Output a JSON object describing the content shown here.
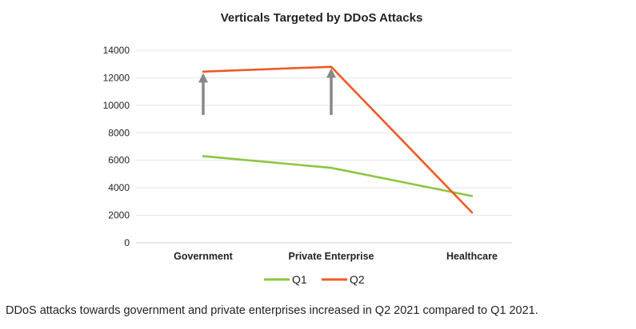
{
  "chart_data": {
    "type": "line",
    "title": "Verticals Targeted by DDoS Attacks",
    "xlabel": "",
    "ylabel": "",
    "categories": [
      "Government",
      "Private Enterprise",
      "Healthcare"
    ],
    "series": [
      {
        "name": "Q1",
        "values": [
          6300,
          5450,
          3400
        ],
        "color": "#8dc63f"
      },
      {
        "name": "Q2",
        "values": [
          12450,
          12800,
          2200
        ],
        "color": "#ef5a24"
      }
    ],
    "ylim": [
      0,
      14000
    ],
    "yticks": [
      0,
      2000,
      4000,
      6000,
      8000,
      10000,
      12000,
      14000
    ],
    "grid": true,
    "legend": "bottom",
    "annotations": [
      {
        "type": "up-arrow",
        "category": "Government",
        "from_value": 9300,
        "to_value": 12350,
        "color": "#888888"
      },
      {
        "type": "up-arrow",
        "category": "Private Enterprise",
        "from_value": 9300,
        "to_value": 12700,
        "color": "#888888"
      }
    ]
  },
  "caption": "DDoS attacks towards government and private enterprises increased in Q2 2021 compared to Q1 2021."
}
